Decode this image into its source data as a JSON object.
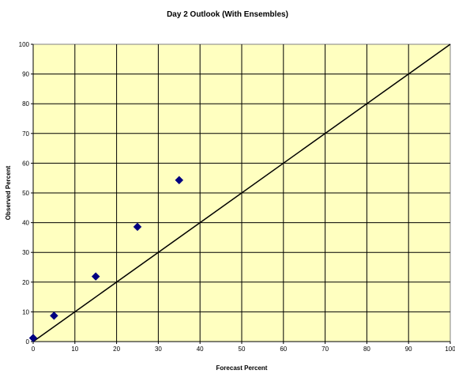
{
  "chart_data": {
    "type": "scatter",
    "title": "Day 2 Outlook (With Ensembles)",
    "xlabel": "Forecast Percent",
    "ylabel": "Observed Percent",
    "xlim": [
      0,
      100
    ],
    "ylim": [
      0,
      100
    ],
    "x_ticks": [
      "0",
      "10",
      "20",
      "30",
      "40",
      "50",
      "60",
      "70",
      "80",
      "90",
      "100"
    ],
    "y_ticks": [
      "0",
      "10",
      "20",
      "30",
      "40",
      "50",
      "60",
      "70",
      "80",
      "90",
      "100"
    ],
    "grid": true,
    "series": [
      {
        "marker": "diamond",
        "color": "#000080",
        "x": [
          0,
          5,
          15,
          25,
          35
        ],
        "y": [
          1.2,
          8.7,
          21.9,
          38.6,
          54.3
        ]
      }
    ],
    "reference_line": {
      "x": [
        0,
        100
      ],
      "y": [
        0,
        100
      ],
      "color": "#000000"
    },
    "colors": {
      "plot_background": "#ffffc0",
      "grid": "#000000",
      "marker": "#000080"
    }
  }
}
